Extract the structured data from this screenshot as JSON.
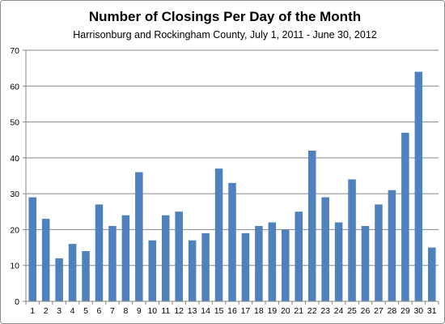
{
  "chart_data": {
    "type": "bar",
    "title": "Number of Closings Per Day of the Month",
    "subtitle": "Harrisonburg  and Rockingham  County,  July 1, 2011 - June 30, 2012",
    "xlabel": "",
    "ylabel": "",
    "categories": [
      "1",
      "2",
      "3",
      "4",
      "5",
      "6",
      "7",
      "8",
      "9",
      "10",
      "11",
      "12",
      "13",
      "14",
      "15",
      "16",
      "17",
      "18",
      "19",
      "20",
      "21",
      "22",
      "23",
      "24",
      "25",
      "26",
      "27",
      "28",
      "29",
      "30",
      "31"
    ],
    "values": [
      29,
      23,
      12,
      16,
      14,
      27,
      21,
      24,
      36,
      17,
      24,
      25,
      17,
      19,
      37,
      33,
      19,
      21,
      22,
      20,
      25,
      42,
      29,
      22,
      34,
      21,
      27,
      31,
      47,
      64,
      15
    ],
    "ylim": [
      0,
      70
    ],
    "yticks": [
      0,
      10,
      20,
      30,
      40,
      50,
      60,
      70
    ],
    "grid": true,
    "legend": "none",
    "bar_color": "#4f81bd",
    "grid_color": "#868686"
  }
}
